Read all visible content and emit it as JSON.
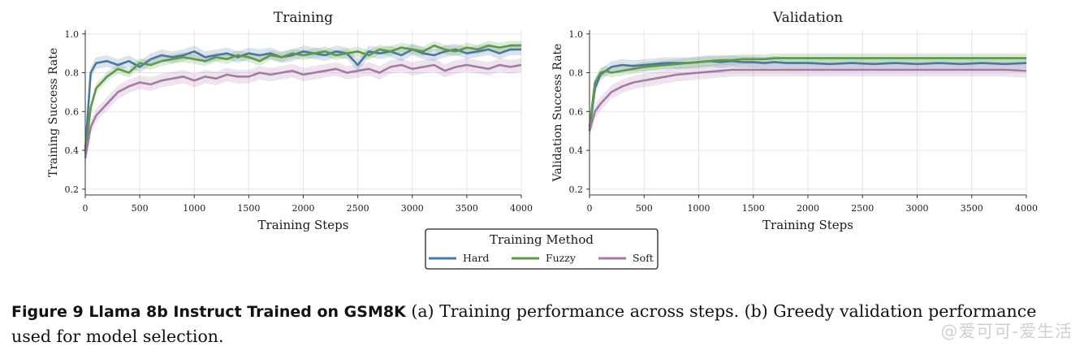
{
  "chart_data": [
    {
      "type": "line",
      "title": "Training",
      "xlabel": "Training Steps",
      "ylabel": "Training Success Rate",
      "xlim": [
        0,
        4000
      ],
      "ylim": [
        0.17,
        1.02
      ],
      "xticks": [
        0,
        500,
        1000,
        1500,
        2000,
        2500,
        3000,
        3500,
        4000
      ],
      "yticks": [
        0.2,
        0.4,
        0.6,
        0.8,
        1.0
      ],
      "grid": true,
      "x": [
        0,
        50,
        100,
        200,
        300,
        400,
        500,
        600,
        700,
        800,
        900,
        1000,
        1100,
        1200,
        1300,
        1400,
        1500,
        1600,
        1700,
        1800,
        1900,
        2000,
        2100,
        2200,
        2300,
        2400,
        2500,
        2600,
        2700,
        2800,
        2900,
        3000,
        3100,
        3200,
        3300,
        3400,
        3500,
        3600,
        3700,
        3800,
        3900,
        4000
      ],
      "series": [
        {
          "name": "Hard",
          "color": "#4a78a0",
          "values": [
            0.4,
            0.8,
            0.85,
            0.86,
            0.84,
            0.86,
            0.83,
            0.87,
            0.89,
            0.88,
            0.89,
            0.91,
            0.88,
            0.89,
            0.9,
            0.88,
            0.9,
            0.89,
            0.9,
            0.88,
            0.89,
            0.91,
            0.9,
            0.89,
            0.91,
            0.9,
            0.84,
            0.91,
            0.9,
            0.91,
            0.89,
            0.92,
            0.9,
            0.89,
            0.91,
            0.92,
            0.9,
            0.91,
            0.92,
            0.9,
            0.92,
            0.92
          ]
        },
        {
          "name": "Fuzzy",
          "color": "#5b9a46",
          "values": [
            0.38,
            0.62,
            0.72,
            0.78,
            0.82,
            0.8,
            0.85,
            0.84,
            0.86,
            0.87,
            0.88,
            0.87,
            0.86,
            0.88,
            0.87,
            0.89,
            0.88,
            0.86,
            0.89,
            0.88,
            0.9,
            0.89,
            0.9,
            0.91,
            0.89,
            0.9,
            0.91,
            0.89,
            0.92,
            0.91,
            0.93,
            0.92,
            0.91,
            0.94,
            0.92,
            0.91,
            0.93,
            0.92,
            0.94,
            0.93,
            0.94,
            0.94
          ]
        },
        {
          "name": "Soft",
          "color": "#a779a6",
          "values": [
            0.36,
            0.52,
            0.58,
            0.64,
            0.7,
            0.73,
            0.75,
            0.74,
            0.76,
            0.77,
            0.78,
            0.76,
            0.78,
            0.77,
            0.79,
            0.78,
            0.78,
            0.8,
            0.79,
            0.8,
            0.81,
            0.79,
            0.8,
            0.81,
            0.82,
            0.8,
            0.81,
            0.82,
            0.8,
            0.83,
            0.84,
            0.82,
            0.83,
            0.84,
            0.81,
            0.83,
            0.84,
            0.83,
            0.82,
            0.84,
            0.83,
            0.84
          ]
        }
      ]
    },
    {
      "type": "line",
      "title": "Validation",
      "xlabel": "Training Steps",
      "ylabel": "Validation Success Rate",
      "xlim": [
        0,
        4000
      ],
      "ylim": [
        0.17,
        1.02
      ],
      "xticks": [
        0,
        500,
        1000,
        1500,
        2000,
        2500,
        3000,
        3500,
        4000
      ],
      "yticks": [
        0.2,
        0.4,
        0.6,
        0.8,
        1.0
      ],
      "grid": true,
      "x": [
        0,
        50,
        100,
        150,
        200,
        300,
        400,
        500,
        600,
        700,
        800,
        900,
        1000,
        1100,
        1200,
        1300,
        1400,
        1500,
        1600,
        1700,
        1800,
        1900,
        2000,
        2200,
        2400,
        2600,
        2800,
        3000,
        3200,
        3400,
        3600,
        3800,
        4000
      ],
      "series": [
        {
          "name": "Hard",
          "color": "#4a78a0",
          "values": [
            0.5,
            0.72,
            0.79,
            0.81,
            0.83,
            0.84,
            0.835,
            0.84,
            0.845,
            0.85,
            0.85,
            0.85,
            0.855,
            0.86,
            0.855,
            0.86,
            0.855,
            0.855,
            0.85,
            0.855,
            0.85,
            0.85,
            0.85,
            0.845,
            0.85,
            0.845,
            0.85,
            0.845,
            0.85,
            0.845,
            0.85,
            0.845,
            0.85
          ]
        },
        {
          "name": "Fuzzy",
          "color": "#5b9a46",
          "values": [
            0.52,
            0.75,
            0.8,
            0.81,
            0.8,
            0.81,
            0.82,
            0.83,
            0.835,
            0.84,
            0.845,
            0.85,
            0.855,
            0.86,
            0.865,
            0.865,
            0.87,
            0.87,
            0.87,
            0.875,
            0.875,
            0.875,
            0.875,
            0.875,
            0.875,
            0.875,
            0.875,
            0.875,
            0.875,
            0.875,
            0.875,
            0.875,
            0.875
          ]
        },
        {
          "name": "Soft",
          "color": "#a779a6",
          "values": [
            0.5,
            0.6,
            0.64,
            0.67,
            0.7,
            0.73,
            0.75,
            0.76,
            0.77,
            0.78,
            0.79,
            0.795,
            0.8,
            0.805,
            0.81,
            0.815,
            0.815,
            0.815,
            0.815,
            0.815,
            0.815,
            0.815,
            0.815,
            0.815,
            0.815,
            0.815,
            0.815,
            0.815,
            0.815,
            0.815,
            0.815,
            0.815,
            0.81
          ]
        }
      ]
    }
  ],
  "legend": {
    "title": "Training Method",
    "placement": "bottom-center",
    "items": [
      {
        "label": "Hard",
        "color": "#4a78a0"
      },
      {
        "label": "Fuzzy",
        "color": "#5b9a46"
      },
      {
        "label": "Soft",
        "color": "#a779a6"
      }
    ]
  },
  "caption": {
    "label": "Figure 9   Llama 8b Instruct Trained on GSM8K",
    "text": " (a) Training performance across steps. (b) Greedy validation performance used for model selection."
  },
  "watermark": "@爱可可-爱生活"
}
